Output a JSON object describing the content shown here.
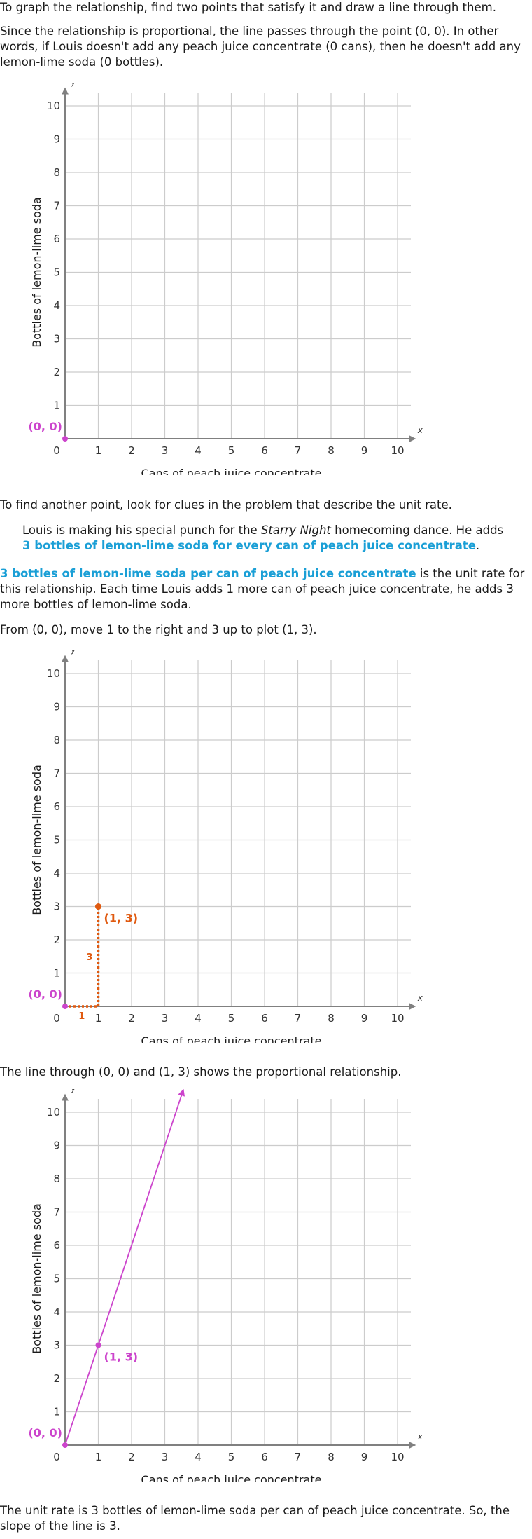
{
  "intro": {
    "line1": "To graph the relationship, find two points that satisfy it and draw a line through them.",
    "line2": "Since the relationship is proportional, the line passes through the point (0, 0). In other words, if Louis doesn't add any peach juice concentrate (0 cans), then he doesn't add any lemon-lime soda (0 bottles)."
  },
  "mid": {
    "line1": "To find another point, look for clues in the problem that describe the unit rate.",
    "quote_a": "Louis is making his special punch for the ",
    "quote_italic": "Starry Night",
    "quote_b": " homecoming dance. He adds ",
    "quote_highlight": "3 bottles of lemon-lime soda for every can of peach juice concentrate",
    "quote_end": ".",
    "rate_highlight": "3 bottles of lemon-lime soda per can of peach juice concentrate",
    "rate_text": " is the unit rate for this relationship. Each time Louis adds 1 more can of peach juice concentrate, he adds 3 more bottles of lemon-lime soda.",
    "move_text": "From (0, 0), move 1 to the right and 3 up to plot (1, 3)."
  },
  "line_text": "The line through (0, 0) and (1, 3) shows the proportional relationship.",
  "conclusion": "The unit rate is 3 bottles of lemon-lime soda per can of peach juice concentrate. So, the slope of the line is 3.",
  "graph_common": {
    "x_axis_label": "Cans of peach juice concentrate",
    "y_axis_label": "Bottles of lemon-lime soda",
    "x_var": "x",
    "y_var": "y",
    "x_ticks": [
      "1",
      "2",
      "3",
      "4",
      "5",
      "6",
      "7",
      "8",
      "9",
      "10"
    ],
    "y_ticks": [
      "1",
      "2",
      "3",
      "4",
      "5",
      "6",
      "7",
      "8",
      "9",
      "10"
    ],
    "origin_tick": "0",
    "origin_label": "(0, 0)",
    "point_label": "(1, 3)",
    "run_label": "1",
    "rise_label": "3"
  },
  "colors": {
    "point_pink": "#cc44cc",
    "step_orange": "#e05a10",
    "highlight_blue": "#1a9fd6",
    "grid": "#cccccc",
    "axis": "#808080"
  },
  "chart_data": [
    {
      "type": "scatter",
      "xlabel": "Cans of peach juice concentrate",
      "ylabel": "Bottles of lemon-lime soda",
      "xlim": [
        0,
        10
      ],
      "ylim": [
        0,
        10
      ],
      "grid": true,
      "points": [
        {
          "x": 0,
          "y": 0,
          "label": "(0, 0)"
        }
      ]
    },
    {
      "type": "scatter",
      "xlabel": "Cans of peach juice concentrate",
      "ylabel": "Bottles of lemon-lime soda",
      "xlim": [
        0,
        10
      ],
      "ylim": [
        0,
        10
      ],
      "grid": true,
      "points": [
        {
          "x": 0,
          "y": 0,
          "label": "(0, 0)"
        },
        {
          "x": 1,
          "y": 3,
          "label": "(1, 3)"
        }
      ],
      "steps": {
        "run": 1,
        "rise": 3
      }
    },
    {
      "type": "line",
      "xlabel": "Cans of peach juice concentrate",
      "ylabel": "Bottles of lemon-lime soda",
      "xlim": [
        0,
        10
      ],
      "ylim": [
        0,
        10
      ],
      "grid": true,
      "points": [
        {
          "x": 0,
          "y": 0,
          "label": "(0, 0)"
        },
        {
          "x": 1,
          "y": 3,
          "label": "(1, 3)"
        }
      ],
      "slope": 3
    }
  ]
}
